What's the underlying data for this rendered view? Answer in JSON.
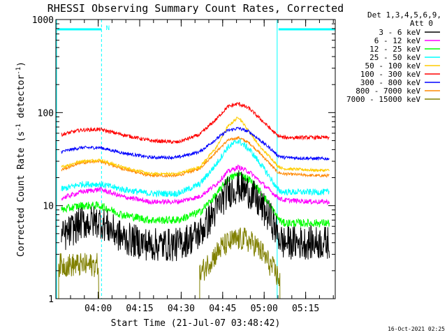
{
  "chart_data": {
    "type": "line",
    "title": "RHESSI Observing Summary Count Rates, Corrected",
    "ylabel_parts": [
      "Corrected Count Rate (s",
      "-1",
      " detector",
      "-1",
      ")"
    ],
    "xlabel": "Start Time (21-Jul-07 03:48:42)",
    "y_scale": "log",
    "ylim": [
      1,
      1000
    ],
    "y_ticks": [
      {
        "v": 1,
        "label": "1"
      },
      {
        "v": 10,
        "label": "10"
      },
      {
        "v": 100,
        "label": "100"
      },
      {
        "v": 1000,
        "label": "1000"
      }
    ],
    "xlim_min": [
      -4,
      97
    ],
    "x_ticks": [
      {
        "min": 11.3,
        "label": "04:00"
      },
      {
        "min": 26.3,
        "label": "04:15"
      },
      {
        "min": 41.3,
        "label": "04:30"
      },
      {
        "min": 56.3,
        "label": "04:45"
      },
      {
        "min": 71.3,
        "label": "05:00"
      },
      {
        "min": 86.3,
        "label": "05:15"
      }
    ],
    "legend_header": [
      "Det 1,3,4,5,6,9,",
      "Att 0"
    ],
    "legend_position": "top-right, outside plot",
    "timestamp": "16-Oct-2021 02:25",
    "night_intervals_min": [
      [
        -4,
        12.5
      ],
      [
        76,
        97
      ]
    ],
    "saa_flag_label": "N",
    "series": [
      {
        "name": "3 - 6 keV",
        "color": "#000000",
        "noise": 0.42,
        "clip_below": 2,
        "x": [
          -2,
          5,
          12,
          20,
          30,
          40,
          48,
          54,
          58,
          62,
          66,
          70,
          74,
          76,
          78,
          90,
          95
        ],
        "y": [
          4.5,
          6.5,
          6.8,
          4.5,
          3.8,
          3.8,
          5,
          9,
          14,
          16,
          14,
          10,
          7,
          5,
          4,
          4,
          4
        ]
      },
      {
        "name": "6 - 12 keV",
        "color": "#ff00ff",
        "noise": 0.06,
        "x": [
          -2,
          5,
          12,
          20,
          30,
          40,
          48,
          54,
          58,
          62,
          66,
          70,
          74,
          76,
          78,
          90,
          95
        ],
        "y": [
          12,
          14,
          15,
          12.5,
          11,
          11,
          12.5,
          17,
          23,
          26,
          23,
          18,
          14,
          12.5,
          11.5,
          11,
          11
        ]
      },
      {
        "name": "12 - 25 keV",
        "color": "#00ff00",
        "noise": 0.1,
        "x": [
          -2,
          5,
          12,
          20,
          30,
          40,
          48,
          54,
          58,
          62,
          66,
          70,
          74,
          76,
          78,
          90,
          95
        ],
        "y": [
          9,
          10,
          10,
          8,
          7,
          7,
          8.5,
          13,
          19,
          22,
          19,
          14,
          9.5,
          7.5,
          6.5,
          6.5,
          6.5
        ]
      },
      {
        "name": "25 - 50 keV",
        "color": "#00ffff",
        "noise": 0.08,
        "x": [
          -2,
          5,
          12,
          20,
          30,
          40,
          48,
          54,
          58,
          62,
          66,
          70,
          74,
          76,
          78,
          90,
          95
        ],
        "y": [
          15,
          17,
          17,
          15,
          13.5,
          13.5,
          17,
          28,
          42,
          50,
          40,
          28,
          19,
          15,
          14,
          14,
          14
        ]
      },
      {
        "name": "50 - 100 keV",
        "color": "#ffcc00",
        "noise": 0.035,
        "x": [
          -2,
          5,
          12,
          20,
          30,
          40,
          48,
          54,
          58,
          62,
          66,
          70,
          74,
          76,
          78,
          90,
          95
        ],
        "y": [
          26,
          30,
          31,
          26,
          22,
          22,
          26,
          42,
          70,
          90,
          62,
          42,
          32,
          27,
          25,
          24,
          24
        ]
      },
      {
        "name": "100 - 300 keV",
        "color": "#ff0000",
        "noise": 0.045,
        "x": [
          -2,
          5,
          12,
          20,
          30,
          40,
          48,
          54,
          58,
          62,
          66,
          70,
          74,
          76,
          78,
          90,
          95
        ],
        "y": [
          58,
          65,
          66,
          58,
          50,
          48,
          58,
          85,
          115,
          125,
          110,
          85,
          65,
          57,
          54,
          54,
          54
        ]
      },
      {
        "name": "300 - 800 keV",
        "color": "#0000ff",
        "noise": 0.04,
        "x": [
          -2,
          5,
          12,
          20,
          30,
          40,
          48,
          54,
          58,
          62,
          66,
          70,
          74,
          76,
          78,
          90,
          95
        ],
        "y": [
          38,
          42,
          42,
          37,
          33,
          33,
          38,
          52,
          64,
          68,
          62,
          50,
          40,
          35,
          33,
          32,
          32
        ]
      },
      {
        "name": "800 - 7000 keV",
        "color": "#ff8800",
        "noise": 0.035,
        "x": [
          -2,
          5,
          12,
          20,
          30,
          40,
          48,
          54,
          58,
          62,
          66,
          70,
          74,
          76,
          78,
          90,
          95
        ],
        "y": [
          24,
          29,
          30,
          25,
          21,
          21,
          25,
          38,
          50,
          54,
          47,
          36,
          27,
          23,
          22,
          21,
          21
        ]
      },
      {
        "name": "7000 - 15000 keV",
        "color": "#808000",
        "noise": 0.3,
        "clip_below": 1,
        "clip_above": 6,
        "segments": [
          {
            "x": [
              -3,
              11.5
            ],
            "y": [
              2.3,
              2.3
            ]
          },
          {
            "x": [
              48,
              52,
              56,
              60,
              64,
              68,
              71,
              74,
              77
            ],
            "y": [
              1.8,
              2.6,
              3.6,
              4.2,
              4.4,
              3.8,
              3.0,
              2.2,
              1.6
            ]
          }
        ]
      }
    ]
  }
}
